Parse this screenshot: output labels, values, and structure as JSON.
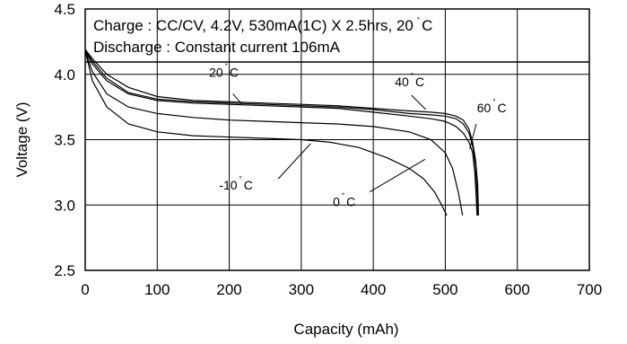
{
  "chart_data": {
    "type": "line",
    "title": "",
    "notes": [
      {
        "prefix": "Charge : CC/CV, 4.2V, 530mA(1C) X 2.5hrs, 20",
        "degree": "°",
        "suffix": "C"
      },
      {
        "prefix": "Discharge : Constant current 106mA",
        "degree": "",
        "suffix": ""
      }
    ],
    "xlabel": "Capacity (mAh)",
    "ylabel": "Voltage (V)",
    "xlim": [
      0,
      700
    ],
    "ylim": [
      2.5,
      4.5
    ],
    "xticks": [
      "0",
      "100",
      "200",
      "300",
      "400",
      "500",
      "600",
      "700"
    ],
    "yticks": [
      "2.5",
      "3.0",
      "3.5",
      "4.0",
      "4.5"
    ],
    "grid": true,
    "series": [
      {
        "name": "20 °C",
        "text": "20",
        "degree": "°",
        "unit": "C",
        "label_pos": [
          172,
          3.98
        ],
        "pointer": [
          [
            205,
            3.85
          ],
          [
            218,
            3.77
          ]
        ],
        "x": [
          0,
          10,
          30,
          60,
          100,
          150,
          200,
          250,
          300,
          350,
          400,
          450,
          480,
          500,
          515,
          525,
          533,
          538,
          541,
          543,
          544
        ],
        "y": [
          4.18,
          4.08,
          3.95,
          3.85,
          3.8,
          3.78,
          3.77,
          3.76,
          3.75,
          3.74,
          3.71,
          3.68,
          3.66,
          3.64,
          3.6,
          3.55,
          3.48,
          3.4,
          3.25,
          3.05,
          2.92
        ]
      },
      {
        "name": "40 °C",
        "text": "40",
        "degree": "°",
        "unit": "C",
        "label_pos": [
          430,
          3.91
        ],
        "pointer": [
          [
            453,
            3.84
          ],
          [
            473,
            3.73
          ]
        ],
        "x": [
          0,
          10,
          30,
          60,
          100,
          150,
          200,
          250,
          300,
          350,
          400,
          450,
          480,
          500,
          515,
          525,
          533,
          538,
          542,
          544,
          545
        ],
        "y": [
          4.19,
          4.1,
          3.97,
          3.86,
          3.81,
          3.79,
          3.78,
          3.77,
          3.76,
          3.75,
          3.73,
          3.7,
          3.69,
          3.68,
          3.66,
          3.62,
          3.55,
          3.45,
          3.3,
          3.1,
          2.92
        ]
      },
      {
        "name": "60 °C",
        "text": "60",
        "degree": "°",
        "unit": "C",
        "label_pos": [
          544,
          3.71
        ],
        "pointer": [
          [
            543,
            3.62
          ],
          [
            534,
            3.43
          ]
        ],
        "x": [
          0,
          10,
          30,
          60,
          100,
          150,
          200,
          250,
          300,
          350,
          400,
          450,
          480,
          500,
          515,
          525,
          533,
          538,
          542,
          545,
          546
        ],
        "y": [
          4.19,
          4.12,
          4.0,
          3.9,
          3.83,
          3.8,
          3.79,
          3.78,
          3.77,
          3.76,
          3.74,
          3.72,
          3.71,
          3.7,
          3.68,
          3.65,
          3.58,
          3.48,
          3.35,
          3.15,
          2.92
        ]
      },
      {
        "name": "0 °C",
        "text": "0",
        "degree": "°",
        "unit": "C",
        "label_pos": [
          344,
          2.99
        ],
        "pointer": [
          [
            395,
            3.1
          ],
          [
            472,
            3.35
          ]
        ],
        "x": [
          0,
          10,
          30,
          60,
          100,
          150,
          200,
          250,
          300,
          350,
          400,
          450,
          480,
          500,
          510,
          518,
          524
        ],
        "y": [
          4.18,
          4.02,
          3.85,
          3.75,
          3.7,
          3.67,
          3.65,
          3.64,
          3.63,
          3.62,
          3.6,
          3.56,
          3.5,
          3.4,
          3.28,
          3.1,
          2.92
        ]
      },
      {
        "name": "-10 °C",
        "text": "-10",
        "degree": "°",
        "unit": "C",
        "label_pos": [
          186,
          3.12
        ],
        "pointer": [
          [
            268,
            3.2
          ],
          [
            313,
            3.47
          ]
        ],
        "x": [
          0,
          10,
          30,
          60,
          100,
          150,
          200,
          250,
          300,
          340,
          380,
          420,
          450,
          470,
          485,
          495,
          502
        ],
        "y": [
          4.18,
          3.95,
          3.75,
          3.62,
          3.56,
          3.53,
          3.52,
          3.51,
          3.5,
          3.48,
          3.44,
          3.36,
          3.28,
          3.2,
          3.1,
          3.0,
          2.92
        ]
      }
    ]
  }
}
